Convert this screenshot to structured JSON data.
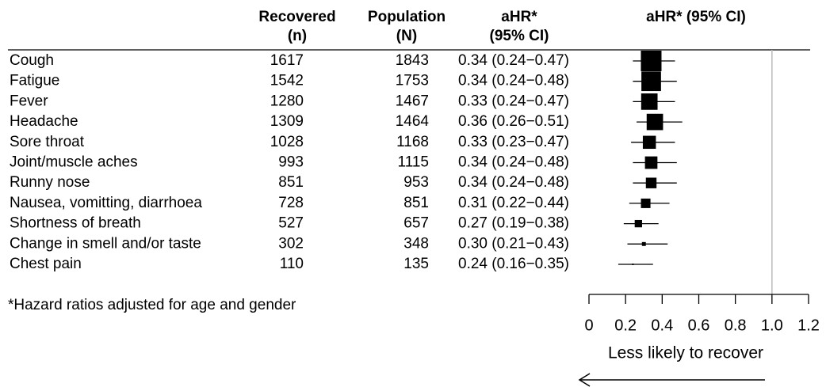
{
  "chart_data": {
    "type": "forest",
    "column_headers": [
      [
        "Recovered",
        "(n)"
      ],
      [
        "Population",
        "(N)"
      ],
      [
        "aHR*",
        "(95% CI)"
      ]
    ],
    "plot_header": "aHR* (95% CI)",
    "categories": [
      "Cough",
      "Fatigue",
      "Fever",
      "Headache",
      "Sore throat",
      "Joint/muscle aches",
      "Runny nose",
      "Nausea, vomitting, diarrhoea",
      "Shortness of breath",
      "Change in smell and/or taste",
      "Chest pain"
    ],
    "recovered": [
      1617,
      1542,
      1280,
      1309,
      1028,
      993,
      851,
      728,
      527,
      302,
      110
    ],
    "population": [
      1843,
      1753,
      1467,
      1464,
      1168,
      1115,
      953,
      851,
      657,
      348,
      135
    ],
    "values": [
      0.34,
      0.34,
      0.33,
      0.36,
      0.33,
      0.34,
      0.34,
      0.31,
      0.27,
      0.3,
      0.24
    ],
    "lower": [
      0.24,
      0.24,
      0.24,
      0.26,
      0.23,
      0.24,
      0.24,
      0.22,
      0.19,
      0.21,
      0.16
    ],
    "upper": [
      0.47,
      0.48,
      0.47,
      0.51,
      0.47,
      0.48,
      0.48,
      0.44,
      0.38,
      0.43,
      0.35
    ],
    "value_labels": [
      "0.34 (0.24−0.47)",
      "0.34 (0.24−0.48)",
      "0.33 (0.24−0.47)",
      "0.36 (0.26−0.51)",
      "0.33 (0.23−0.47)",
      "0.34 (0.24−0.48)",
      "0.34 (0.24−0.48)",
      "0.31 (0.22−0.44)",
      "0.27 (0.19−0.38)",
      "0.30 (0.21−0.43)",
      "0.24 (0.16−0.35)"
    ],
    "xlim": [
      0,
      1.2
    ],
    "xticks": [
      0,
      0.2,
      0.4,
      0.6,
      0.8,
      {
        "value": 1,
        "label": "1.0"
      },
      1.2
    ],
    "reference_line": 1,
    "xlabel": "Less likely to recover",
    "footnote": "*Hazard ratios adjusted for age and gender",
    "color": "#000000"
  }
}
